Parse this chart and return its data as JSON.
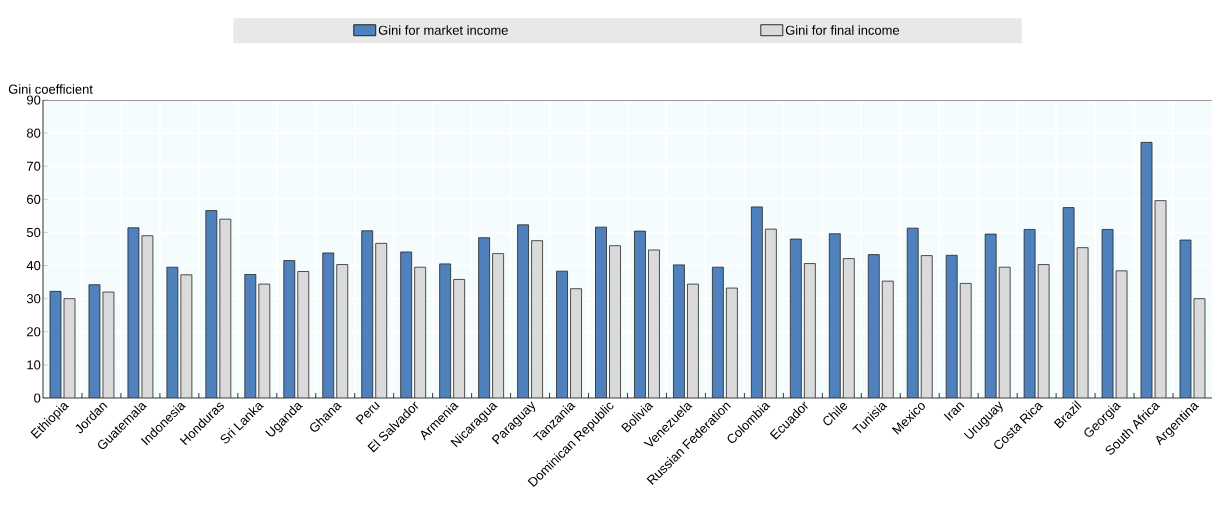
{
  "chart_data": {
    "type": "bar",
    "ylabel": "Gini coefficient",
    "categories": [
      "Ethiopia",
      "Jordan",
      "Guatemala",
      "Indonesia",
      "Honduras",
      "Sri Lanka",
      "Uganda",
      "Ghana",
      "Peru",
      "El Salvador",
      "Armenia",
      "Nicaragua",
      "Paraguay",
      "Tanzania",
      "Dominican Republic",
      "Bolivia",
      "Venezuela",
      "Russian Federation",
      "Colombia",
      "Ecuador",
      "Chile",
      "Tunisia",
      "Mexico",
      "Iran",
      "Uruguay",
      "Costa Rica",
      "Brazil",
      "Georgia",
      "South Africa",
      "Argentina"
    ],
    "series": [
      {
        "name": "Gini for market income",
        "color": "#4f81bd",
        "values": [
          32.2,
          34.2,
          51.4,
          39.5,
          56.6,
          37.3,
          41.5,
          43.8,
          50.5,
          44.1,
          40.5,
          48.4,
          52.3,
          38.3,
          51.6,
          50.4,
          40.2,
          39.5,
          57.7,
          48.0,
          49.6,
          43.3,
          51.3,
          43.1,
          49.5,
          50.9,
          57.5,
          50.9,
          77.2,
          47.7
        ]
      },
      {
        "name": "Gini for final income",
        "color": "#dadada",
        "values": [
          30.0,
          32.0,
          49.0,
          37.2,
          54.0,
          34.4,
          38.2,
          40.3,
          46.7,
          39.5,
          35.8,
          43.6,
          47.5,
          33.0,
          46.0,
          44.7,
          34.4,
          33.2,
          51.0,
          40.6,
          42.1,
          35.3,
          43.0,
          34.6,
          39.5,
          40.3,
          45.4,
          38.4,
          59.6,
          30.0
        ]
      }
    ],
    "ylim": [
      0,
      90
    ],
    "yticks": [
      0,
      10,
      20,
      30,
      40,
      50,
      60,
      70,
      80,
      90
    ],
    "grid": true,
    "legend": "top"
  }
}
